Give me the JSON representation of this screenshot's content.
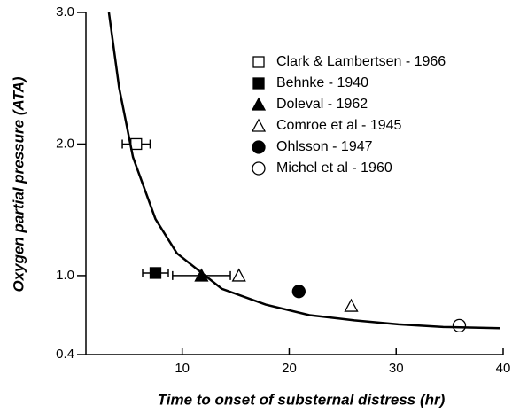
{
  "chart_data": {
    "type": "scatter",
    "x_label": "Time to onset of substernal distress (hr)",
    "y_label": "Oxygen partial pressure (ATA)",
    "xlim": [
      1,
      40
    ],
    "xticks": [
      10,
      20,
      30,
      40
    ],
    "ylim": [
      0.4,
      3.0
    ],
    "yticks": [
      {
        "value": 3.0,
        "label": "3.0"
      },
      {
        "value": 2.0,
        "label": "2.0"
      },
      {
        "value": 1.0,
        "label": "1.0"
      },
      0.4
    ],
    "series": [
      {
        "name": "Clark & Lambertsen - 1966",
        "marker": "square",
        "filled": false,
        "color": "#000000",
        "x": [
          5.7
        ],
        "values": [
          2.0
        ],
        "xerr": [
          1.3
        ]
      },
      {
        "name": "Behnke - 1940",
        "marker": "square",
        "filled": true,
        "color": "#000000",
        "x": [
          7.5
        ],
        "values": [
          1.02
        ],
        "xerr": [
          1.2
        ]
      },
      {
        "name": "Doleval - 1962",
        "marker": "triangle",
        "filled": true,
        "color": "#000000",
        "x": [
          11.8
        ],
        "values": [
          1.0
        ],
        "xerr": [
          2.7
        ]
      },
      {
        "name": "Comroe et al - 1945",
        "marker": "triangle",
        "filled": false,
        "color": "#000000",
        "x": [
          15.3,
          25.8
        ],
        "values": [
          1.0,
          0.77
        ]
      },
      {
        "name": "Ohlsson - 1947",
        "marker": "circle",
        "filled": true,
        "color": "#000000",
        "x": [
          20.9
        ],
        "values": [
          0.88
        ]
      },
      {
        "name": "Michel et al - 1960",
        "marker": "circle",
        "filled": false,
        "color": "#000000",
        "x": [
          35.9
        ],
        "values": [
          0.62
        ]
      },
      {
        "marker": "line",
        "color": "#000000",
        "x": [
          3.15,
          4.1,
          5.4,
          7.5,
          9.5,
          13.7,
          17.8,
          21.9,
          26.1,
          30.2,
          34.4,
          39.7
        ],
        "values": [
          3.0,
          2.43,
          1.9,
          1.43,
          1.17,
          0.9,
          0.78,
          0.7,
          0.66,
          0.63,
          0.61,
          0.6
        ]
      }
    ]
  }
}
